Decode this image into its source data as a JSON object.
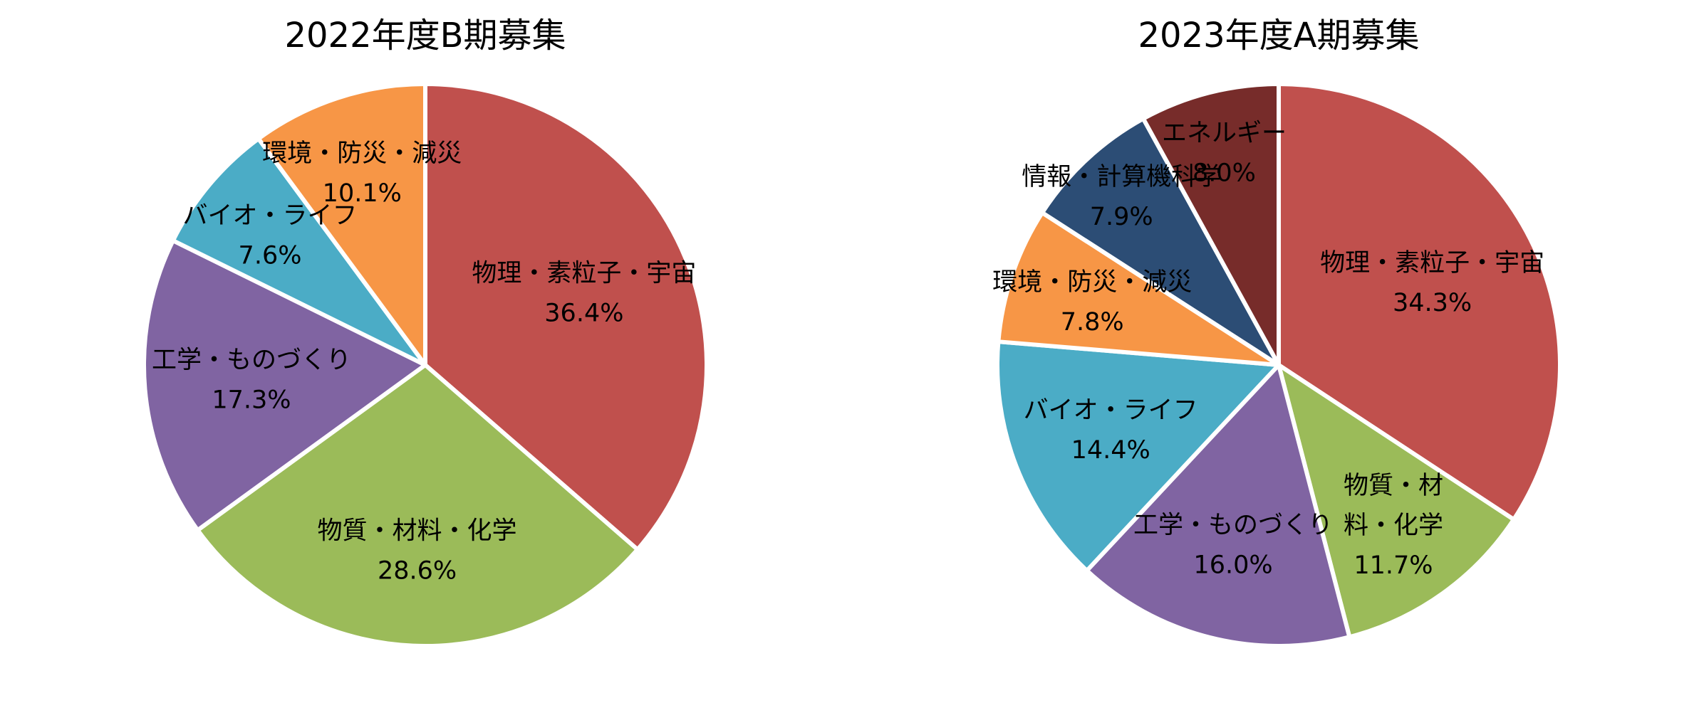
{
  "chart_data": [
    {
      "type": "pie",
      "title": "2022年度B期募集",
      "slices": [
        {
          "label": "物理・素粒子・宇宙",
          "label_lines": [
            "物理・素粒子・宇宙"
          ],
          "value": 36.4,
          "value_text": "36.4%",
          "color": "#C0504D"
        },
        {
          "label": "物質・材料・化学",
          "label_lines": [
            "物質・材料・化学"
          ],
          "value": 28.6,
          "value_text": "28.6%",
          "color": "#9BBB59"
        },
        {
          "label": "工学・ものづくり",
          "label_lines": [
            "工学・ものづくり"
          ],
          "value": 17.3,
          "value_text": "17.3%",
          "color": "#8064A2"
        },
        {
          "label": "バイオ・ライフ",
          "label_lines": [
            "バイオ・ライフ"
          ],
          "value": 7.6,
          "value_text": "7.6%",
          "color": "#4BACC6"
        },
        {
          "label": "環境・防災・減災",
          "label_lines": [
            "環境・防災・減災"
          ],
          "value": 10.1,
          "value_text": "10.1%",
          "color": "#F79646"
        }
      ]
    },
    {
      "type": "pie",
      "title": "2023年度A期募集",
      "slices": [
        {
          "label": "物理・素粒子・宇宙",
          "label_lines": [
            "物理・素粒子・宇宙"
          ],
          "value": 34.3,
          "value_text": "34.3%",
          "color": "#C0504D"
        },
        {
          "label": "物質・材料・化学",
          "label_lines": [
            "物質・材",
            "料・化学"
          ],
          "value": 11.7,
          "value_text": "11.7%",
          "color": "#9BBB59"
        },
        {
          "label": "工学・ものづくり",
          "label_lines": [
            "工学・ものづくり"
          ],
          "value": 16.0,
          "value_text": "16.0%",
          "color": "#8064A2"
        },
        {
          "label": "バイオ・ライフ",
          "label_lines": [
            "バイオ・ライフ"
          ],
          "value": 14.4,
          "value_text": "14.4%",
          "color": "#4BACC6"
        },
        {
          "label": "環境・防災・減災",
          "label_lines": [
            "環境・防災・減災"
          ],
          "value": 7.8,
          "value_text": "7.8%",
          "color": "#F79646"
        },
        {
          "label": "情報・計算機科学",
          "label_lines": [
            "情報・計算機科学"
          ],
          "value": 7.9,
          "value_text": "7.9%",
          "color": "#2C4D75"
        },
        {
          "label": "エネルギー",
          "label_lines": [
            "エネルギー"
          ],
          "value": 8.0,
          "value_text": "8.0%",
          "color": "#772C2A"
        }
      ]
    }
  ]
}
